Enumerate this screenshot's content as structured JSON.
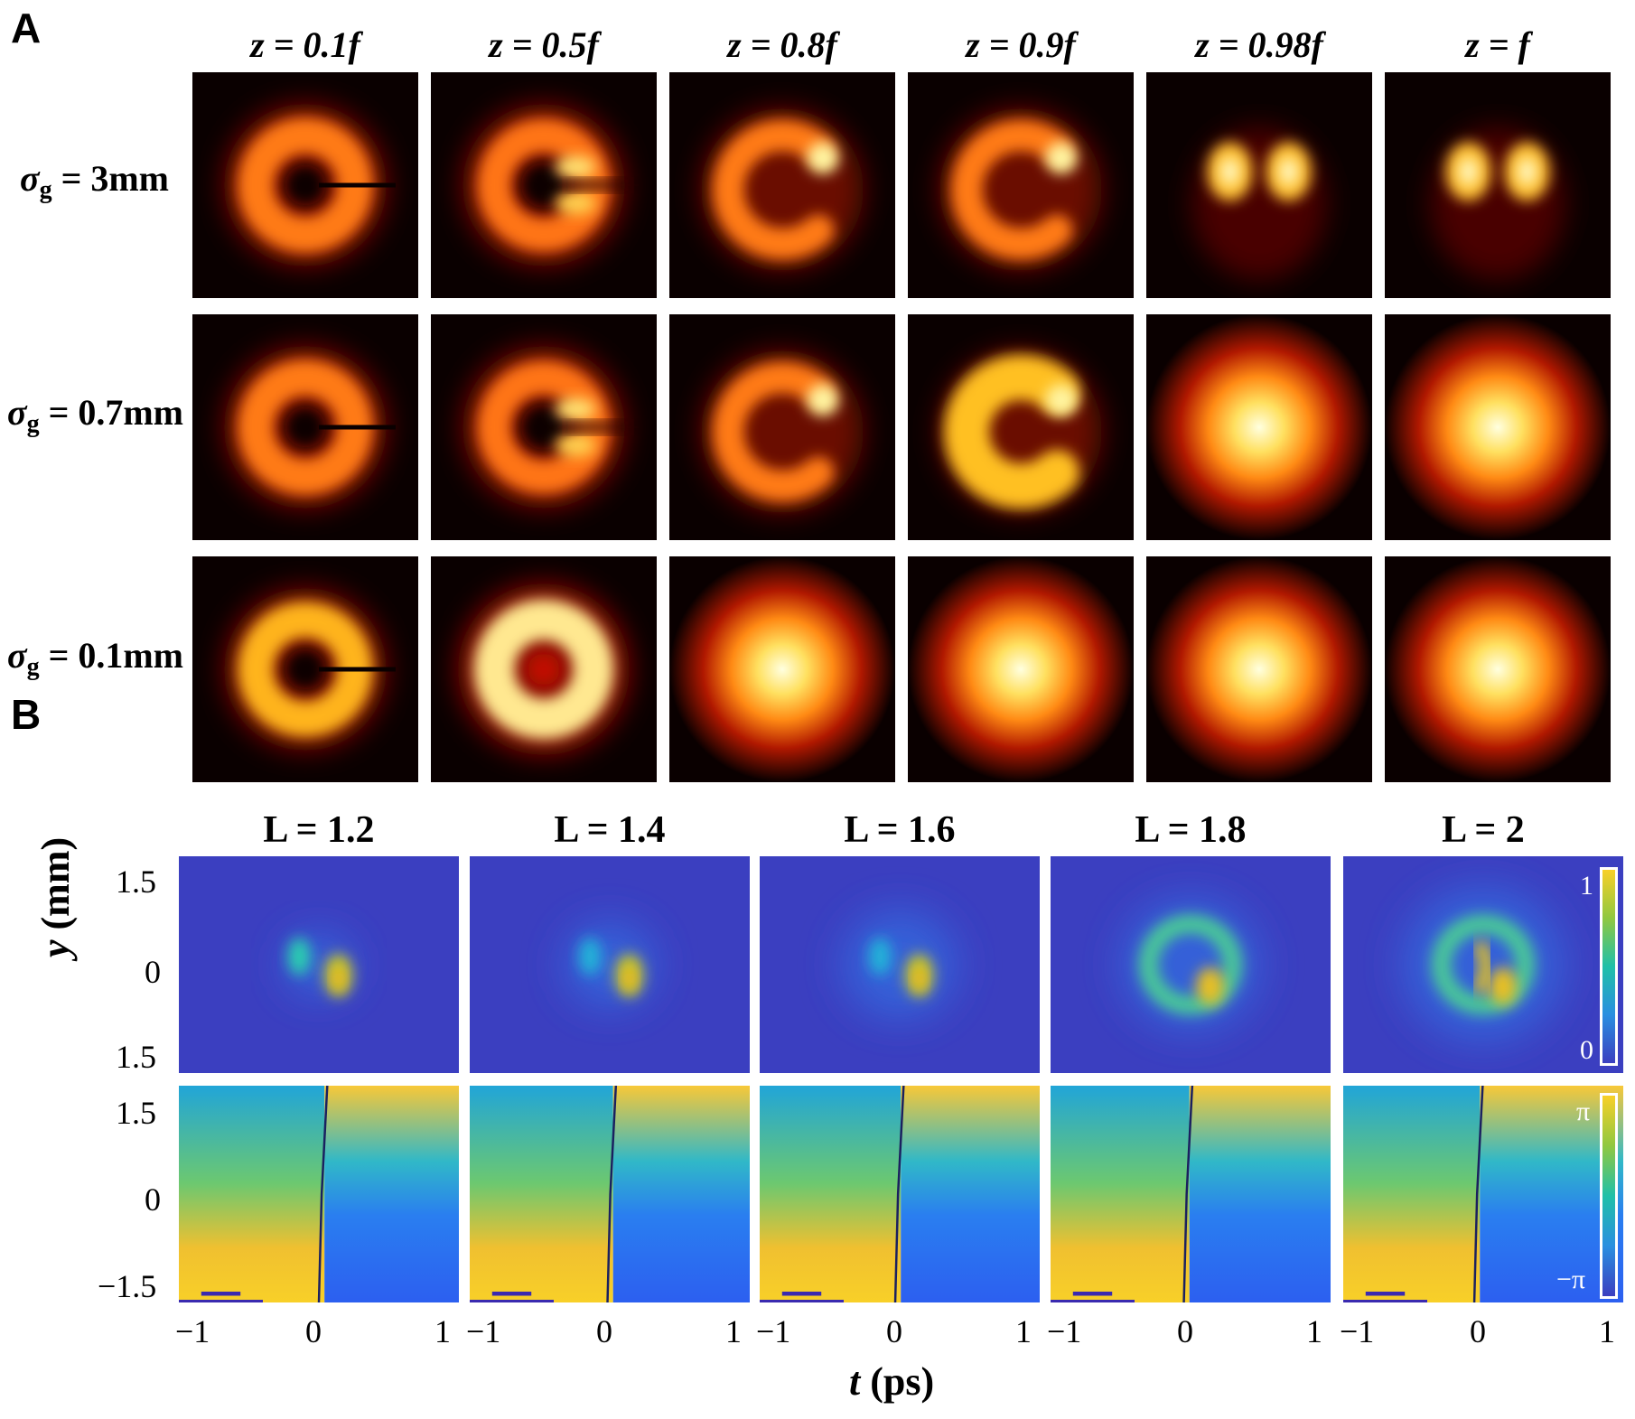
{
  "panel_a": {
    "letter": "A",
    "columns": [
      "z = 0.1f",
      "z = 0.5f",
      "z = 0.8f",
      "z = 0.9f",
      "z = 0.98f",
      "z = f"
    ],
    "rows": [
      {
        "symbol": "σ",
        "sub": "g",
        "value": " = 3mm"
      },
      {
        "symbol": "σ",
        "sub": "g",
        "value": " = 0.7mm"
      },
      {
        "symbol": "σ",
        "sub": "g",
        "value": " = 0.1mm"
      }
    ]
  },
  "panel_b": {
    "letter": "B",
    "columns": [
      "L = 1.2",
      "L = 1.4",
      "L = 1.6",
      "L = 1.8",
      "L = 2"
    ],
    "y_ticks_intensity": [
      "1.5",
      "0",
      "1.5"
    ],
    "y_ticks_phase": [
      "1.5",
      "0",
      "−1.5"
    ],
    "x_ticks": [
      "−1",
      "0",
      "1"
    ],
    "ylabel_var": "y",
    "ylabel_unit": " (mm)",
    "xlabel_var": "t",
    "xlabel_unit": " (ps)",
    "colorbar_intensity": {
      "max": "1",
      "min": "0"
    },
    "colorbar_phase": {
      "max": "π",
      "min": "−π"
    }
  },
  "colors": {
    "heat_bg": "#0a0000",
    "parula_bg": "#3b3fc0",
    "cbar_border": "#ffffff"
  }
}
